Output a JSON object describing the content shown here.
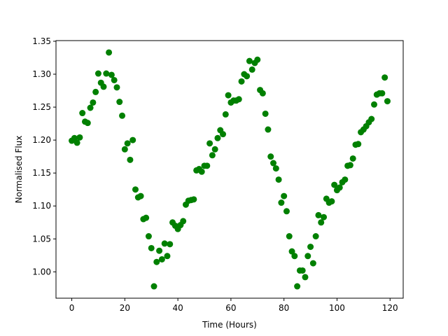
{
  "chart_data": {
    "type": "scatter",
    "xlabel": "Time (Hours)",
    "ylabel": "Normalised Flux",
    "color": "#008000",
    "xlim": [
      -5.95,
      124.95
    ],
    "ylim": [
      0.96,
      1.351
    ],
    "xticks": [
      0,
      20,
      40,
      60,
      80,
      100,
      120
    ],
    "yticks": [
      {
        "value": 1.0,
        "label": "1.00"
      },
      1.05,
      {
        "value": 1.1,
        "label": "1.10"
      },
      1.15,
      {
        "value": 1.2,
        "label": "1.20"
      },
      1.25,
      {
        "value": 1.3,
        "label": "1.30"
      },
      1.35
    ],
    "x": [
      0,
      1,
      2,
      3,
      4,
      5,
      6,
      7,
      8,
      9,
      10,
      11,
      12,
      13,
      14,
      15,
      16,
      17,
      18,
      19,
      20,
      21,
      22,
      23,
      24,
      25,
      26,
      27,
      28,
      29,
      30,
      31,
      32,
      33,
      34,
      35,
      36,
      37,
      38,
      39,
      40,
      41,
      42,
      43,
      44,
      45,
      46,
      47,
      48,
      49,
      50,
      51,
      52,
      53,
      54,
      55,
      56,
      57,
      58,
      59,
      60,
      61,
      62,
      63,
      64,
      65,
      66,
      67,
      68,
      69,
      70,
      71,
      72,
      73,
      74,
      75,
      76,
      77,
      78,
      79,
      80,
      81,
      82,
      83,
      84,
      85,
      86,
      87,
      88,
      89,
      90,
      91,
      92,
      93,
      94,
      95,
      96,
      97,
      98,
      99,
      100,
      101,
      102,
      103,
      104,
      105,
      106,
      107,
      108,
      109,
      110,
      111,
      112,
      113,
      114,
      115,
      116,
      117,
      118,
      119
    ],
    "values": [
      1.199,
      1.203,
      1.196,
      1.204,
      1.241,
      1.228,
      1.226,
      1.249,
      1.257,
      1.273,
      1.301,
      1.287,
      1.281,
      1.301,
      1.333,
      1.299,
      1.291,
      1.28,
      1.258,
      1.237,
      1.186,
      1.195,
      1.17,
      1.2,
      1.125,
      1.113,
      1.115,
      1.08,
      1.082,
      1.054,
      1.036,
      0.978,
      1.015,
      1.032,
      1.019,
      1.043,
      1.024,
      1.042,
      1.075,
      1.07,
      1.065,
      1.071,
      1.077,
      1.102,
      1.108,
      1.109,
      1.11,
      1.154,
      1.156,
      1.152,
      1.161,
      1.161,
      1.195,
      1.177,
      1.186,
      1.203,
      1.215,
      1.209,
      1.239,
      1.268,
      1.257,
      1.26,
      1.26,
      1.262,
      1.289,
      1.3,
      1.297,
      1.32,
      1.307,
      1.317,
      1.322,
      1.276,
      1.271,
      1.24,
      1.216,
      1.175,
      1.165,
      1.157,
      1.14,
      1.105,
      1.115,
      1.092,
      1.054,
      1.031,
      1.024,
      0.978,
      1.002,
      1.002,
      0.992,
      1.024,
      1.038,
      1.013,
      1.054,
      1.086,
      1.075,
      1.083,
      1.111,
      1.105,
      1.107,
      1.132,
      1.124,
      1.128,
      1.136,
      1.14,
      1.161,
      1.162,
      1.172,
      1.193,
      1.194,
      1.212,
      1.216,
      1.221,
      1.227,
      1.232,
      1.254,
      1.269,
      1.271,
      1.271,
      1.295,
      1.259
    ]
  }
}
